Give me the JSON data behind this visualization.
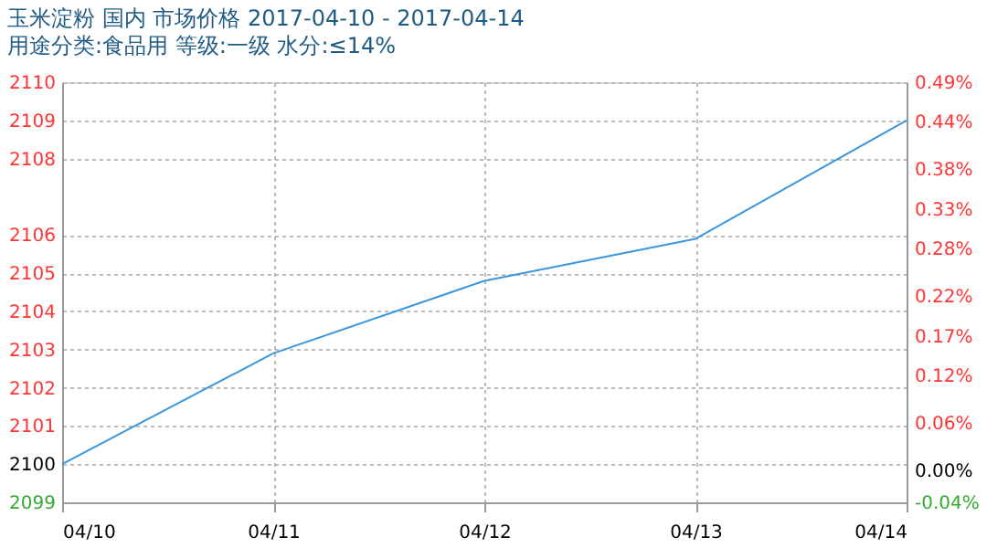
{
  "chart_data": {
    "type": "line",
    "title": "玉米淀粉 国内 市场价格 2017-04-10 - 2017-04-14",
    "subtitle": "用途分类:食品用 等级:一级 水分:≤14%",
    "categories": [
      "04/10",
      "04/11",
      "04/12",
      "04/13",
      "04/14"
    ],
    "series": [
      {
        "color": "#3a96dd",
        "values": [
          2100,
          2102.9,
          2104.8,
          2105.9,
          2109.0
        ]
      }
    ],
    "ylim": [
      2099,
      2110
    ],
    "yticks": [
      2099,
      2100,
      2101,
      2102,
      2103,
      2104,
      2105,
      2106,
      2108,
      2109,
      2110
    ],
    "y2lim": [
      -0.04,
      0.49
    ],
    "y2ticks": [
      {
        "value": -0.04,
        "label": "-0.04%"
      },
      {
        "value": 0,
        "label": "0.00%"
      },
      {
        "value": 0.06,
        "label": "0.06%"
      },
      {
        "value": 0.12,
        "label": "0.12%"
      },
      {
        "value": 0.17,
        "label": "0.17%"
      },
      {
        "value": 0.22,
        "label": "0.22%"
      },
      {
        "value": 0.28,
        "label": "0.28%"
      },
      {
        "value": 0.33,
        "label": "0.33%"
      },
      {
        "value": 0.38,
        "label": "0.38%"
      },
      {
        "value": 0.44,
        "label": "0.44%"
      },
      {
        "value": 0.49,
        "label": "0.49%"
      }
    ],
    "grid": true,
    "line_style": "solid",
    "marker": "none"
  }
}
